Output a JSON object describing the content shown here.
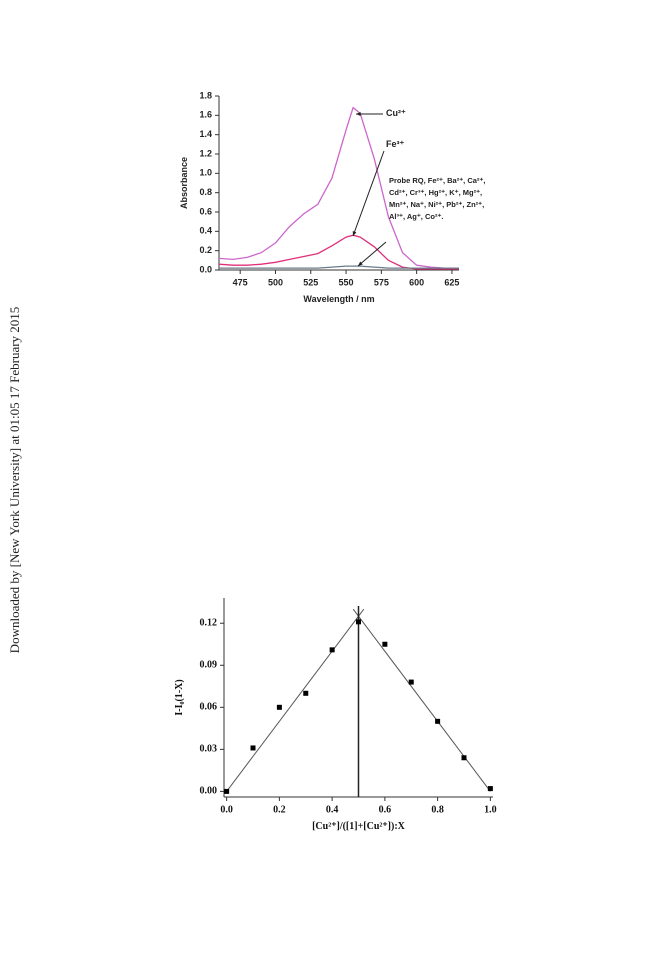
{
  "watermark": "Downloaded by [New York University] at 01:05 17 February 2015",
  "chart_data": [
    {
      "type": "line",
      "x_label": "Wavelength / nm",
      "y_label": "Absorbance",
      "x": [
        460,
        470,
        480,
        490,
        500,
        510,
        520,
        530,
        540,
        550,
        555,
        560,
        570,
        580,
        590,
        600,
        610,
        620,
        630
      ],
      "series": [
        {
          "name": "Cu²⁺",
          "color": "#cc66cc",
          "values": [
            0.12,
            0.11,
            0.13,
            0.18,
            0.28,
            0.45,
            0.58,
            0.68,
            0.95,
            1.45,
            1.68,
            1.62,
            1.15,
            0.55,
            0.18,
            0.05,
            0.03,
            0.02,
            0.02
          ]
        },
        {
          "name": "Fe³⁺",
          "color": "#e0307a",
          "values": [
            0.06,
            0.05,
            0.05,
            0.06,
            0.08,
            0.11,
            0.14,
            0.17,
            0.25,
            0.34,
            0.36,
            0.34,
            0.24,
            0.1,
            0.03,
            0.01,
            0.01,
            0.01,
            0.01
          ]
        },
        {
          "name": "Probe RQ, Fe²⁺, Ba²⁺, Ca²⁺, Cd²⁺, Cr³⁺, Hg²⁺, K⁺, Mg²⁺, Mn²⁺, Na⁺, Ni²⁺, Pb²⁺, Zn²⁺, Al³⁺, Ag⁺, Co²⁺.",
          "color": "#6a7a8a",
          "values": [
            0.02,
            0.02,
            0.02,
            0.02,
            0.02,
            0.02,
            0.02,
            0.02,
            0.03,
            0.04,
            0.04,
            0.04,
            0.03,
            0.02,
            0.02,
            0.02,
            0.02,
            0.02,
            0.02
          ]
        }
      ],
      "xlim": [
        460,
        630
      ],
      "xticks": [
        475,
        500,
        525,
        550,
        575,
        600,
        625
      ],
      "ylim": [
        0,
        1.8
      ],
      "yticks": [
        {
          "value": 0,
          "label": "0.0"
        },
        0.2,
        0.4,
        0.6,
        0.8,
        {
          "value": 1,
          "label": "1.0"
        },
        1.2,
        1.4,
        1.6,
        1.8
      ]
    },
    {
      "type": "scatter",
      "x_label": "[Cu²⁺]/([1]+[Cu²⁺]):X",
      "y_label": "I-I₀(1-X)",
      "x": [
        0,
        0.1,
        0.2,
        0.3,
        0.4,
        0.5,
        0.6,
        0.7,
        0.8,
        0.9,
        1.0
      ],
      "values": [
        0.0,
        0.031,
        0.06,
        0.07,
        0.101,
        0.121,
        0.105,
        0.078,
        0.05,
        0.024,
        0.002
      ],
      "color": "#000000",
      "fit_lines": [
        [
          [
            0,
            0
          ],
          [
            0.52,
            0.13
          ]
        ],
        [
          [
            0.48,
            0.13
          ],
          [
            1,
            0
          ]
        ]
      ],
      "vline": 0.5,
      "xlim": [
        -0.01,
        1.01
      ],
      "xticks": [
        {
          "value": 0,
          "label": "0.0"
        },
        0.2,
        0.4,
        0.6,
        0.8,
        {
          "value": 1,
          "label": "1.0"
        }
      ],
      "ylim": [
        -0.004,
        0.138
      ],
      "yticks": [
        {
          "value": 0,
          "label": "0.00"
        },
        0.03,
        0.06,
        0.09,
        0.12
      ]
    }
  ]
}
